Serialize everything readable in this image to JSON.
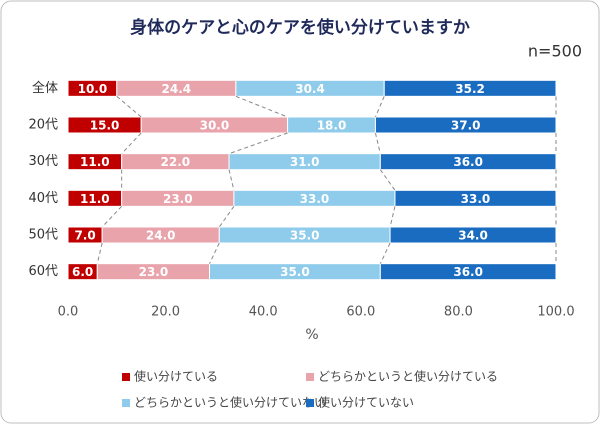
{
  "chart_data": {
    "type": "stacked-barh",
    "title": "身体のケアと心のケアを使い分けていますか",
    "annotation": "n=500",
    "xlabel": "%",
    "categories": [
      "全体",
      "20代",
      "30代",
      "40代",
      "50代",
      "60代"
    ],
    "series": [
      {
        "name": "使い分けている",
        "color": "#c00000",
        "values": [
          10.0,
          15.0,
          11.0,
          11.0,
          7.0,
          6.0
        ],
        "value_labels": [
          "10.0",
          "15.0",
          "11.0",
          "11.0",
          "7.0",
          "6.0"
        ]
      },
      {
        "name": "どちらかというと使い分けている",
        "color": "#e8a3ab",
        "values": [
          24.4,
          30.0,
          22.0,
          23.0,
          24.0,
          23.0
        ],
        "value_labels": [
          "24.4",
          "30.0",
          "22.0",
          "23.0",
          "24.0",
          "23.0"
        ]
      },
      {
        "name": "どちらかというと使い分けていない",
        "color": "#8fcbea",
        "values": [
          30.4,
          18.0,
          31.0,
          33.0,
          35.0,
          35.0
        ],
        "value_labels": [
          "30.4",
          "18.0",
          "31.0",
          "33.0",
          "35.0",
          "35.0"
        ]
      },
      {
        "name": "使い分けていない",
        "color": "#1a6cc0",
        "values": [
          35.2,
          37.0,
          36.0,
          33.0,
          34.0,
          36.0
        ],
        "value_labels": [
          "35.2",
          "37.0",
          "36.0",
          "33.0",
          "34.0",
          "36.0"
        ]
      }
    ],
    "xlim": [
      0,
      100
    ],
    "xticks": [
      {
        "value": 0,
        "label": "0.0"
      },
      {
        "value": 20,
        "label": "20.0"
      },
      {
        "value": 40,
        "label": "40.0"
      },
      {
        "value": 60,
        "label": "60.0"
      },
      {
        "value": 80,
        "label": "80.0"
      },
      {
        "value": 100,
        "label": "100.0"
      }
    ]
  }
}
